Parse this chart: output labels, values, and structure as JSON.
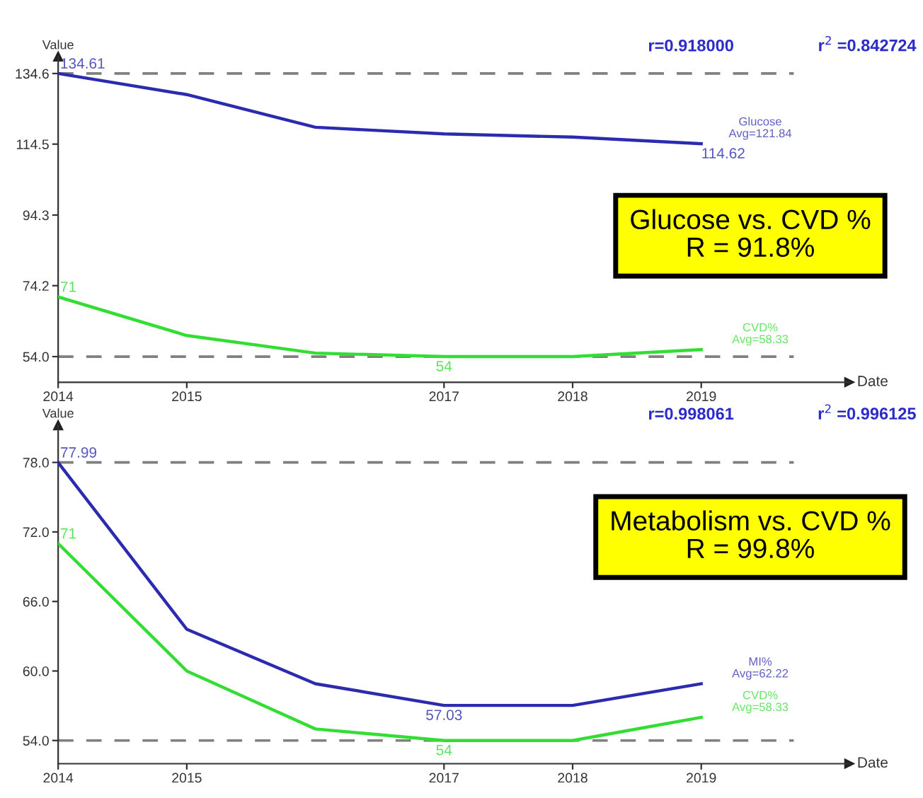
{
  "chart_data": [
    {
      "type": "line",
      "x": [
        2014,
        2015,
        2016,
        2017,
        2018,
        2019
      ],
      "xlim": [
        2014,
        2020.15
      ],
      "xticks": [
        2014,
        2015,
        2017,
        2018,
        2019
      ],
      "ylim": [
        46.7,
        139.4
      ],
      "yticks": [
        {
          "value": 54.0,
          "label": "54.0"
        },
        {
          "value": 74.2,
          "label": "74.2"
        },
        {
          "value": 94.3,
          "label": "94.3"
        },
        {
          "value": 114.5,
          "label": "114.5"
        },
        {
          "value": 134.6,
          "label": "134.6"
        }
      ],
      "xlabel": "Date",
      "ylabel": "Value",
      "grid": false,
      "legend": false,
      "line_style": "solid",
      "marker": "none",
      "series": [
        {
          "name": "Glucose",
          "color": "#2b2bb0",
          "values": [
            134.61,
            128.6,
            119.3,
            117.4,
            116.5,
            114.62
          ],
          "value_labels": [
            "134.61",
            null,
            null,
            null,
            null,
            "114.62"
          ]
        },
        {
          "name": "CVD%",
          "color": "#33dd33",
          "values": [
            71,
            60,
            55,
            54,
            54,
            56
          ],
          "value_labels": [
            "71",
            null,
            null,
            "54",
            null,
            null
          ]
        }
      ],
      "ref_lines": [
        {
          "axis": "y",
          "value": 134.6,
          "color": "#808080",
          "line_style": "dashed"
        },
        {
          "axis": "y",
          "value": 54.0,
          "color": "#808080",
          "line_style": "dashed"
        }
      ],
      "annotations": [
        "r=0.918000",
        "r$^{2}$ =0.842724",
        "Glucose vs. CVD %\nR = 91.8%",
        "Avg=121.84",
        "Avg=58.33"
      ]
    },
    {
      "type": "line",
      "x": [
        2014,
        2015,
        2016,
        2017,
        2018,
        2019
      ],
      "xlim": [
        2014,
        2020.15
      ],
      "xticks": [
        2014,
        2015,
        2017,
        2018,
        2019
      ],
      "ylim": [
        52.0,
        81.2
      ],
      "yticks": [
        {
          "value": 54.0,
          "label": "54.0"
        },
        {
          "value": 60.0,
          "label": "60.0"
        },
        {
          "value": 66.0,
          "label": "66.0"
        },
        {
          "value": 72.0,
          "label": "72.0"
        },
        {
          "value": 78.0,
          "label": "78.0"
        }
      ],
      "xlabel": "Date",
      "ylabel": "Value",
      "grid": false,
      "legend": false,
      "line_style": "solid",
      "marker": "none",
      "series": [
        {
          "name": "MI%",
          "color": "#2b2bb0",
          "values": [
            77.99,
            63.6,
            58.9,
            57.03,
            57.03,
            58.9
          ],
          "value_labels": [
            "77.99",
            null,
            null,
            "57.03",
            null,
            null
          ]
        },
        {
          "name": "CVD%",
          "color": "#33dd33",
          "values": [
            71,
            60,
            55,
            54,
            54,
            56
          ],
          "value_labels": [
            "71",
            null,
            null,
            "54",
            null,
            null
          ]
        }
      ],
      "ref_lines": [
        {
          "axis": "y",
          "value": 78.0,
          "color": "#808080",
          "line_style": "dashed"
        },
        {
          "axis": "y",
          "value": 54.0,
          "color": "#808080",
          "line_style": "dashed"
        }
      ],
      "annotations": [
        "r=0.998061",
        "r$^{2}$ =0.996125",
        "Metabolism vs. CVD %\nR = 99.8%",
        "Avg=62.22",
        "Avg=58.33"
      ]
    }
  ]
}
